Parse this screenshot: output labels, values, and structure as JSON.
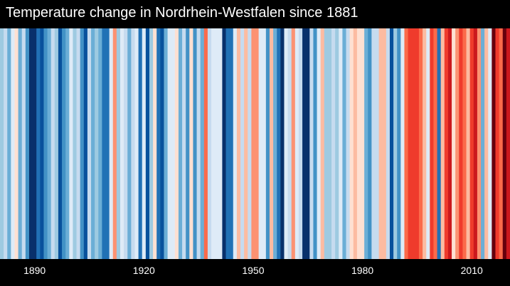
{
  "chart_data": {
    "type": "heatmap",
    "title": "Temperature change in Nordrhein-Westfalen since 1881",
    "x_start": 1881,
    "x_end": 2020,
    "xticks": [
      1890,
      1920,
      1950,
      1980,
      2010
    ],
    "palette": {
      "blues_dark_to_light": [
        "#08306b",
        "#08519c",
        "#2171b5",
        "#4292c6",
        "#6baed6",
        "#9ecae1",
        "#c6dbef",
        "#deebf7"
      ],
      "reds_light_to_dark": [
        "#fee0d2",
        "#fcbba1",
        "#fc9272",
        "#fb6a4a",
        "#ef3b2c",
        "#cb181d",
        "#a50f15",
        "#67000d"
      ]
    },
    "colors": [
      "#9ecae1",
      "#c6dbef",
      "#6baed6",
      "#deebf7",
      "#fee0d2",
      "#6baed6",
      "#c6dbef",
      "#4292c6",
      "#08306b",
      "#08306b",
      "#2171b5",
      "#08519c",
      "#4292c6",
      "#6baed6",
      "#c6dbef",
      "#9ecae1",
      "#08519c",
      "#4292c6",
      "#6baed6",
      "#deebf7",
      "#9ecae1",
      "#c6dbef",
      "#4292c6",
      "#08519c",
      "#c6dbef",
      "#6baed6",
      "#9ecae1",
      "#6baed6",
      "#2171b5",
      "#2171b5",
      "#deebf7",
      "#fc9272",
      "#9ecae1",
      "#deebf7",
      "#c6dbef",
      "#6baed6",
      "#c6dbef",
      "#deebf7",
      "#2171b5",
      "#deebf7",
      "#08519c",
      "#9ecae1",
      "#fee0d2",
      "#2171b5",
      "#08519c",
      "#6baed6",
      "#deebf7",
      "#deebf7",
      "#fee0d2",
      "#6baed6",
      "#c6dbef",
      "#4292c6",
      "#fee0d2",
      "#4292c6",
      "#c6dbef",
      "#6baed6",
      "#fb6a4a",
      "#c6dbef",
      "#deebf7",
      "#deebf7",
      "#deebf7",
      "#08306b",
      "#2171b5",
      "#2171b5",
      "#deebf7",
      "#fcbba1",
      "#c6dbef",
      "#fcbba1",
      "#c6dbef",
      "#fc9272",
      "#fc9272",
      "#deebf7",
      "#deebf7",
      "#4292c6",
      "#fcbba1",
      "#6baed6",
      "#2171b5",
      "#08306b",
      "#deebf7",
      "#c6dbef",
      "#fc9272",
      "#deebf7",
      "#c6dbef",
      "#08306b",
      "#08306b",
      "#c6dbef",
      "#4292c6",
      "#deebf7",
      "#fcbba1",
      "#9ecae1",
      "#9ecae1",
      "#c6dbef",
      "#9ecae1",
      "#deebf7",
      "#6baed6",
      "#c6dbef",
      "#fee0d2",
      "#fcbba1",
      "#fee0d2",
      "#fee0d2",
      "#6baed6",
      "#4292c6",
      "#c6dbef",
      "#c6dbef",
      "#fcbba1",
      "#fcbba1",
      "#c6dbef",
      "#08519c",
      "#9ecae1",
      "#4292c6",
      "#deebf7",
      "#fb6a4a",
      "#ef3b2c",
      "#ef3b2c",
      "#ef3b2c",
      "#fb6a4a",
      "#fcbba1",
      "#deebf7",
      "#ef3b2c",
      "#fb6a4a",
      "#2171b5",
      "#fcbba1",
      "#ef3b2c",
      "#cb181d",
      "#fee0d2",
      "#fc9272",
      "#ef3b2c",
      "#fb6a4a",
      "#fcbba1",
      "#ef3b2c",
      "#cb181d",
      "#fc9272",
      "#6baed6",
      "#fcbba1",
      "#deebf7",
      "#67000d",
      "#ef3b2c",
      "#fb6a4a",
      "#67000d",
      "#cb181d"
    ],
    "grid": false,
    "legend": "none"
  }
}
